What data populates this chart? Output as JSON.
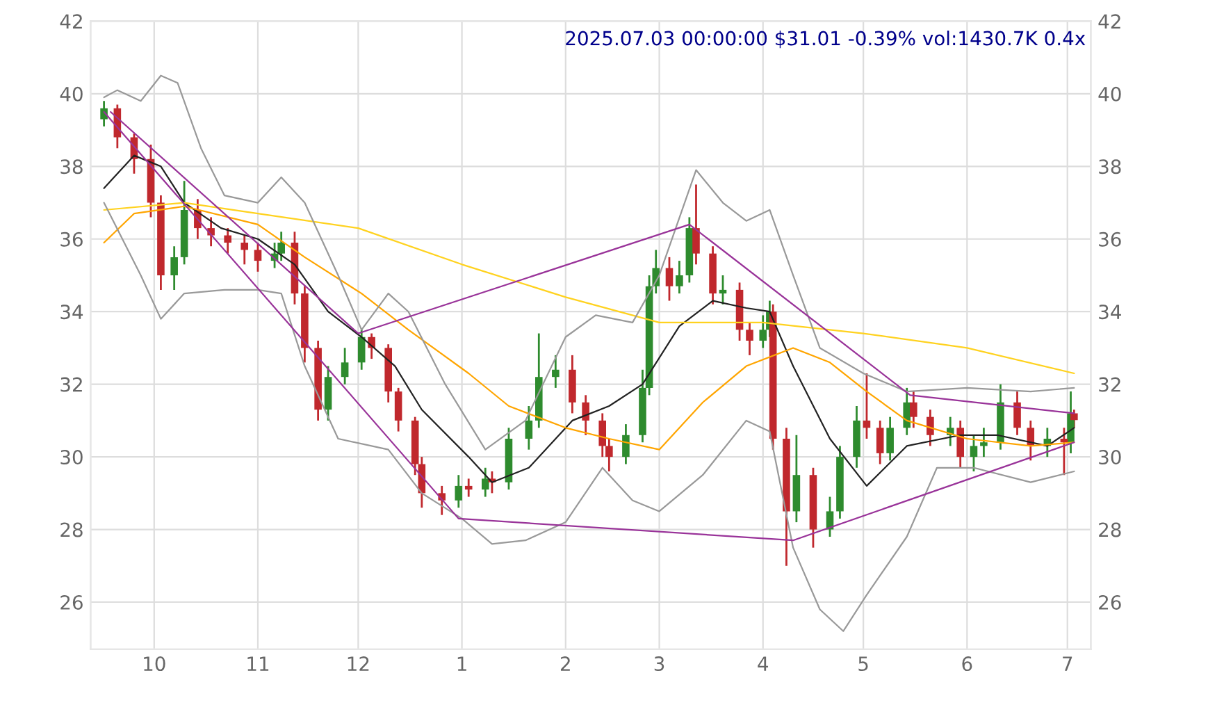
{
  "chart_data": {
    "type": "candlestick",
    "title": "2025.07.03 00:00:00 $31.01 -0.39% vol:1430.7K 0.4x",
    "xlim": [
      "2024-09-12",
      "2025-07-08"
    ],
    "xticks": [
      {
        "value": "2024-10-01",
        "label": "10"
      },
      {
        "value": "2024-11-01",
        "label": "11"
      },
      {
        "value": "2024-12-01",
        "label": "12"
      },
      {
        "value": "2025-01-01",
        "label": "1"
      },
      {
        "value": "2025-02-01",
        "label": "2"
      },
      {
        "value": "2025-03-01",
        "label": "3"
      },
      {
        "value": "2025-04-01",
        "label": "4"
      },
      {
        "value": "2025-05-01",
        "label": "5"
      },
      {
        "value": "2025-06-01",
        "label": "6"
      },
      {
        "value": "2025-07-01",
        "label": "7"
      }
    ],
    "ylim": [
      24.7,
      42
    ],
    "yticks": [
      26,
      28,
      30,
      32,
      34,
      36,
      38,
      40,
      42
    ],
    "y2lim": [
      24.7,
      42
    ],
    "y2ticks": [
      26,
      28,
      30,
      32,
      34,
      36,
      38,
      40,
      42
    ],
    "grid": true,
    "series": [
      {
        "color": "#2e8b2e",
        "x": [
          "2024-09-16",
          "2024-10-07",
          "2024-10-10",
          "2024-11-06",
          "2024-11-08",
          "2024-11-22",
          "2024-11-27",
          "2024-12-02",
          "2024-12-31",
          "2025-01-08",
          "2025-01-15",
          "2025-01-21",
          "2025-01-24",
          "2025-01-29",
          "2025-02-19",
          "2025-02-24",
          "2025-02-26",
          "2025-02-28",
          "2025-03-07",
          "2025-03-10",
          "2025-03-20",
          "2025-04-01",
          "2025-04-03",
          "2025-04-11",
          "2025-04-21",
          "2025-04-24",
          "2025-04-29",
          "2025-05-09",
          "2025-05-14",
          "2025-05-27",
          "2025-06-03",
          "2025-06-06",
          "2025-06-11",
          "2025-06-25",
          "2025-07-02"
        ],
        "ohlc": [
          [
            39.3,
            39.8,
            39.1,
            39.6
          ],
          [
            35.0,
            35.8,
            34.6,
            35.5
          ],
          [
            35.5,
            37.6,
            35.3,
            36.8
          ],
          [
            35.4,
            35.9,
            35.2,
            35.6
          ],
          [
            35.6,
            36.2,
            35.4,
            35.9
          ],
          [
            31.3,
            32.5,
            31.0,
            32.2
          ],
          [
            32.2,
            33.0,
            32.0,
            32.6
          ],
          [
            32.6,
            33.5,
            32.4,
            33.3
          ],
          [
            28.8,
            29.5,
            28.6,
            29.2
          ],
          [
            29.1,
            29.7,
            28.9,
            29.4
          ],
          [
            29.3,
            30.8,
            29.1,
            30.5
          ],
          [
            30.5,
            31.4,
            30.2,
            31.0
          ],
          [
            31.0,
            33.4,
            30.8,
            32.2
          ],
          [
            32.2,
            32.8,
            31.9,
            32.4
          ],
          [
            30.0,
            30.9,
            29.8,
            30.6
          ],
          [
            30.6,
            32.4,
            30.4,
            31.9
          ],
          [
            31.9,
            35.0,
            31.7,
            34.7
          ],
          [
            34.7,
            35.7,
            34.5,
            35.2
          ],
          [
            34.7,
            35.4,
            34.5,
            35.0
          ],
          [
            35.0,
            36.6,
            34.8,
            36.3
          ],
          [
            34.5,
            35.0,
            34.2,
            34.6
          ],
          [
            33.2,
            33.9,
            33.0,
            33.5
          ],
          [
            33.5,
            34.3,
            33.3,
            34.0
          ],
          [
            28.5,
            30.6,
            28.2,
            29.5
          ],
          [
            28.0,
            28.9,
            27.8,
            28.5
          ],
          [
            28.5,
            30.3,
            28.3,
            30.0
          ],
          [
            30.0,
            31.4,
            29.7,
            31.0
          ],
          [
            30.1,
            31.1,
            29.9,
            30.8
          ],
          [
            30.8,
            31.9,
            30.6,
            31.5
          ],
          [
            30.6,
            31.1,
            30.3,
            30.8
          ],
          [
            30.0,
            30.6,
            29.6,
            30.3
          ],
          [
            30.3,
            30.8,
            30.0,
            30.4
          ],
          [
            30.4,
            32.0,
            30.2,
            31.5
          ],
          [
            30.3,
            30.8,
            30.0,
            30.5
          ],
          [
            30.4,
            31.8,
            30.1,
            31.2
          ]
        ]
      },
      {
        "color": "#c0282d",
        "x": [
          "2024-09-20",
          "2024-09-25",
          "2024-09-30",
          "2024-10-03",
          "2024-10-14",
          "2024-10-18",
          "2024-10-23",
          "2024-10-28",
          "2024-11-01",
          "2024-11-12",
          "2024-11-15",
          "2024-11-19",
          "2024-12-05",
          "2024-12-10",
          "2024-12-13",
          "2024-12-18",
          "2024-12-20",
          "2024-12-26",
          "2025-01-03",
          "2025-01-10",
          "2025-02-03",
          "2025-02-07",
          "2025-02-12",
          "2025-02-14",
          "2025-03-04",
          "2025-03-12",
          "2025-03-17",
          "2025-03-25",
          "2025-03-28",
          "2025-04-04",
          "2025-04-08",
          "2025-04-16",
          "2025-05-02",
          "2025-05-06",
          "2025-05-16",
          "2025-05-21",
          "2025-05-30",
          "2025-06-16",
          "2025-06-20",
          "2025-06-30",
          "2025-07-03"
        ],
        "ohlc": [
          [
            39.6,
            39.7,
            38.5,
            38.8
          ],
          [
            38.8,
            38.9,
            37.8,
            38.2
          ],
          [
            38.2,
            38.6,
            36.6,
            37.0
          ],
          [
            37.0,
            37.2,
            34.6,
            35.0
          ],
          [
            36.8,
            37.1,
            36.0,
            36.3
          ],
          [
            36.3,
            36.6,
            35.8,
            36.1
          ],
          [
            36.1,
            36.3,
            35.6,
            35.9
          ],
          [
            35.9,
            36.1,
            35.3,
            35.7
          ],
          [
            35.7,
            35.9,
            35.1,
            35.4
          ],
          [
            35.9,
            36.2,
            34.2,
            34.5
          ],
          [
            34.5,
            34.7,
            32.6,
            33.0
          ],
          [
            33.0,
            33.2,
            31.0,
            31.3
          ],
          [
            33.3,
            33.4,
            32.7,
            33.0
          ],
          [
            33.0,
            33.1,
            31.5,
            31.8
          ],
          [
            31.8,
            31.9,
            30.7,
            31.0
          ],
          [
            31.0,
            31.1,
            29.5,
            29.8
          ],
          [
            29.8,
            30.0,
            28.6,
            29.0
          ],
          [
            29.0,
            29.2,
            28.4,
            28.8
          ],
          [
            29.2,
            29.4,
            28.9,
            29.1
          ],
          [
            29.4,
            29.6,
            29.0,
            29.3
          ],
          [
            32.4,
            32.8,
            31.2,
            31.5
          ],
          [
            31.5,
            31.7,
            30.6,
            31.0
          ],
          [
            31.0,
            31.2,
            30.0,
            30.3
          ],
          [
            30.3,
            30.5,
            29.6,
            30.0
          ],
          [
            35.2,
            35.5,
            34.3,
            34.7
          ],
          [
            36.3,
            37.5,
            35.3,
            35.6
          ],
          [
            35.6,
            35.8,
            34.2,
            34.5
          ],
          [
            34.6,
            34.8,
            33.2,
            33.5
          ],
          [
            33.5,
            33.7,
            32.8,
            33.2
          ],
          [
            34.0,
            34.2,
            30.2,
            30.5
          ],
          [
            30.5,
            30.8,
            27.0,
            28.5
          ],
          [
            29.5,
            29.7,
            27.5,
            28.0
          ],
          [
            31.0,
            32.3,
            30.5,
            30.8
          ],
          [
            30.8,
            31.0,
            29.8,
            30.1
          ],
          [
            31.5,
            31.8,
            30.8,
            31.1
          ],
          [
            31.1,
            31.3,
            30.3,
            30.6
          ],
          [
            30.8,
            31.0,
            29.7,
            30.0
          ],
          [
            31.5,
            31.8,
            30.6,
            30.8
          ],
          [
            30.8,
            31.0,
            29.9,
            30.3
          ],
          [
            30.5,
            30.8,
            29.5,
            30.4
          ],
          [
            31.2,
            31.3,
            30.8,
            31.01
          ]
        ]
      },
      {
        "type": "line",
        "color": "#222222",
        "x": [
          "2024-09-16",
          "2024-09-25",
          "2024-10-03",
          "2024-10-10",
          "2024-10-21",
          "2024-11-01",
          "2024-11-12",
          "2024-11-22",
          "2024-12-02",
          "2024-12-12",
          "2024-12-20",
          "2025-01-03",
          "2025-01-10",
          "2025-01-21",
          "2025-02-03",
          "2025-02-14",
          "2025-02-24",
          "2025-03-07",
          "2025-03-17",
          "2025-03-27",
          "2025-04-03",
          "2025-04-10",
          "2025-04-21",
          "2025-05-02",
          "2025-05-14",
          "2025-05-30",
          "2025-06-10",
          "2025-06-25",
          "2025-07-03"
        ],
        "values": [
          37.4,
          38.3,
          38.0,
          37.0,
          36.3,
          36.0,
          35.3,
          34.0,
          33.3,
          32.5,
          31.3,
          30.0,
          29.3,
          29.7,
          31.0,
          31.4,
          32.0,
          33.6,
          34.3,
          34.1,
          34.0,
          32.5,
          30.5,
          29.2,
          30.3,
          30.6,
          30.6,
          30.3,
          30.8
        ]
      },
      {
        "type": "line",
        "color": "#ffa500",
        "x": [
          "2024-09-16",
          "2024-09-25",
          "2024-10-10",
          "2024-11-01",
          "2024-11-15",
          "2024-12-02",
          "2024-12-16",
          "2025-01-03",
          "2025-01-15",
          "2025-02-01",
          "2025-02-14",
          "2025-03-01",
          "2025-03-14",
          "2025-03-27",
          "2025-04-10",
          "2025-04-21",
          "2025-05-02",
          "2025-05-14",
          "2025-06-01",
          "2025-06-20",
          "2025-07-03"
        ],
        "values": [
          35.9,
          36.7,
          36.9,
          36.4,
          35.5,
          34.5,
          33.5,
          32.3,
          31.4,
          30.8,
          30.5,
          30.2,
          31.5,
          32.5,
          33.0,
          32.6,
          31.8,
          31.0,
          30.5,
          30.3,
          30.4
        ]
      },
      {
        "type": "line",
        "color": "#ffd21f",
        "x": [
          "2024-09-16",
          "2024-10-10",
          "2024-11-01",
          "2024-12-01",
          "2025-01-01",
          "2025-02-01",
          "2025-03-01",
          "2025-04-01",
          "2025-05-01",
          "2025-06-01",
          "2025-07-03"
        ],
        "values": [
          36.8,
          37.0,
          36.7,
          36.3,
          35.3,
          34.4,
          33.7,
          33.7,
          33.4,
          33.0,
          32.3
        ]
      },
      {
        "type": "line",
        "color": "#999999",
        "x": [
          "2024-09-16",
          "2024-09-20",
          "2024-09-27",
          "2024-10-03",
          "2024-10-08",
          "2024-10-15",
          "2024-10-22",
          "2024-11-01",
          "2024-11-08",
          "2024-11-15",
          "2024-11-25",
          "2024-12-02",
          "2024-12-10",
          "2024-12-16",
          "2024-12-27",
          "2025-01-08",
          "2025-01-20",
          "2025-02-01",
          "2025-02-10",
          "2025-02-21",
          "2025-03-01",
          "2025-03-12",
          "2025-03-20",
          "2025-03-27",
          "2025-04-03",
          "2025-04-10",
          "2025-04-18",
          "2025-05-01",
          "2025-05-14",
          "2025-06-01",
          "2025-06-20",
          "2025-07-03"
        ],
        "values": [
          39.9,
          40.1,
          39.8,
          40.5,
          40.3,
          38.5,
          37.2,
          37.0,
          37.7,
          37.0,
          35.0,
          33.5,
          34.5,
          34.0,
          32.0,
          30.2,
          31.0,
          33.3,
          33.9,
          33.7,
          35.0,
          37.9,
          37.0,
          36.5,
          36.8,
          35.0,
          33.0,
          32.3,
          31.8,
          31.9,
          31.8,
          31.9
        ]
      },
      {
        "type": "line",
        "color": "#999999",
        "x": [
          "2024-09-16",
          "2024-09-27",
          "2024-10-03",
          "2024-10-10",
          "2024-10-22",
          "2024-11-01",
          "2024-11-08",
          "2024-11-15",
          "2024-11-25",
          "2024-12-10",
          "2024-12-20",
          "2025-01-01",
          "2025-01-10",
          "2025-01-20",
          "2025-02-01",
          "2025-02-12",
          "2025-02-21",
          "2025-03-01",
          "2025-03-14",
          "2025-03-27",
          "2025-04-03",
          "2025-04-10",
          "2025-04-18",
          "2025-04-25",
          "2025-05-02",
          "2025-05-14",
          "2025-05-23",
          "2025-06-03",
          "2025-06-20",
          "2025-07-03"
        ],
        "values": [
          37.0,
          35.0,
          33.8,
          34.5,
          34.6,
          34.6,
          34.5,
          32.5,
          30.5,
          30.2,
          29.0,
          28.3,
          27.6,
          27.7,
          28.2,
          29.7,
          28.8,
          28.5,
          29.5,
          31.0,
          30.7,
          27.5,
          25.8,
          25.2,
          26.2,
          27.8,
          29.7,
          29.7,
          29.3,
          29.6
        ]
      },
      {
        "type": "line",
        "color": "#993399",
        "x": [
          "2024-09-16",
          "2024-12-31",
          "2025-04-10",
          "2025-07-03"
        ],
        "values": [
          39.5,
          28.3,
          27.7,
          30.4
        ]
      },
      {
        "type": "line",
        "color": "#993399",
        "x": [
          "2024-09-18",
          "2024-12-01",
          "2025-03-10",
          "2025-05-15",
          "2025-07-03"
        ],
        "values": [
          39.5,
          33.4,
          36.4,
          31.7,
          31.2
        ]
      }
    ]
  }
}
